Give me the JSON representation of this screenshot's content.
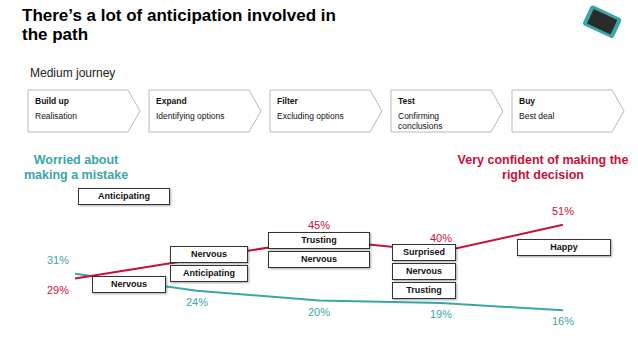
{
  "chart_data": {
    "type": "line",
    "title": "There’s a lot of anticipation involved in the path",
    "subtitle": "Medium journey",
    "categories": [
      "Build up",
      "Expand",
      "Filter",
      "Test",
      "Buy"
    ],
    "stage_descriptions": [
      "Realisation",
      "Identifying options",
      "Excluding options",
      "Confirming conclusions",
      "Best deal"
    ],
    "emotions": [
      [
        "Anticipating",
        "Nervous"
      ],
      [
        "Nervous",
        "Anticipating"
      ],
      [
        "Trusting",
        "Nervous"
      ],
      [
        "Surprised",
        "Nervous",
        "Trusting"
      ],
      [
        "Happy"
      ]
    ],
    "series": [
      {
        "name": "Worried about making a mistake",
        "color": "#3aa6a8",
        "values": [
          31,
          24,
          20,
          19,
          16
        ],
        "value_labels": [
          "31%",
          "24%",
          "20%",
          "19%",
          "16%"
        ]
      },
      {
        "name": "Very confident of making the right decision",
        "color": "#c8103a",
        "values": [
          29,
          37,
          45,
          40,
          51
        ],
        "value_labels": [
          "29%",
          null,
          "45%",
          "40%",
          "51%"
        ]
      }
    ],
    "ylim": [
      10,
      55
    ],
    "tick_labels": false,
    "grid": false,
    "data_labels": true
  }
}
